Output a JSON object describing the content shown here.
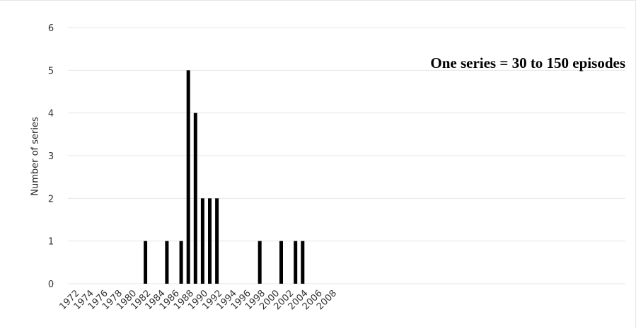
{
  "chart_data": {
    "type": "bar",
    "title": "",
    "xlabel": "",
    "ylabel": "Number of series",
    "annotation": "One series = 30 to 150 episodes",
    "ylim": [
      0,
      6
    ],
    "yticks": [
      0,
      1,
      2,
      3,
      4,
      5,
      6
    ],
    "grid": true,
    "x_start": 1972,
    "x_end": 2009,
    "xtick_labels": [
      "1972",
      "1974",
      "1976",
      "1978",
      "1980",
      "1982",
      "1984",
      "1986",
      "1988",
      "1990",
      "1992",
      "1994",
      "1996",
      "1998",
      "2000",
      "2002",
      "2004",
      "2006",
      "2008"
    ],
    "points": [
      {
        "year": 1982,
        "value": 1
      },
      {
        "year": 1985,
        "value": 1
      },
      {
        "year": 1987,
        "value": 1
      },
      {
        "year": 1988,
        "value": 5
      },
      {
        "year": 1989,
        "value": 4
      },
      {
        "year": 1990,
        "value": 2
      },
      {
        "year": 1991,
        "value": 2
      },
      {
        "year": 1992,
        "value": 2
      },
      {
        "year": 1998,
        "value": 1
      },
      {
        "year": 2001,
        "value": 1
      },
      {
        "year": 2003,
        "value": 1
      },
      {
        "year": 2004,
        "value": 1
      }
    ],
    "bar_color": "#000000",
    "grid_color": "#e6e6e6"
  }
}
